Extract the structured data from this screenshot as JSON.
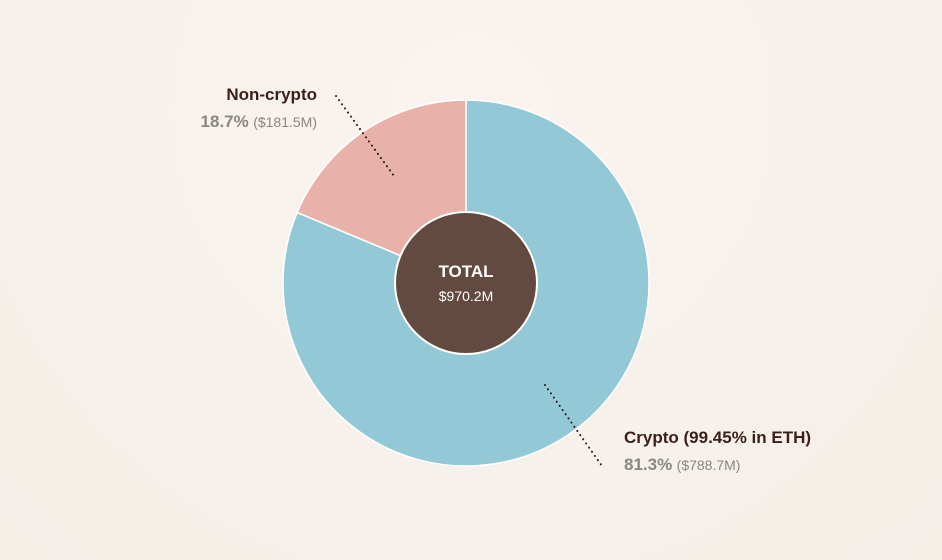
{
  "chart_data": {
    "type": "pie",
    "center_label": {
      "title": "TOTAL",
      "value": "$970.2M"
    },
    "slices": [
      {
        "name": "Crypto (99.45% in ETH)",
        "percent": 81.3,
        "percent_label": "81.3%",
        "amount_label": "($788.7M)",
        "color": "#93c8d6"
      },
      {
        "name": "Non-crypto",
        "percent": 18.7,
        "percent_label": "18.7%",
        "amount_label": "($181.5M)",
        "color": "#e8b2aa"
      }
    ]
  },
  "colors": {
    "background": "#f6f1ea",
    "center_fill": "#624a40",
    "label_text": "#3b1f1c",
    "value_text": "#8a8684",
    "leader_line": "#2a1a16"
  }
}
